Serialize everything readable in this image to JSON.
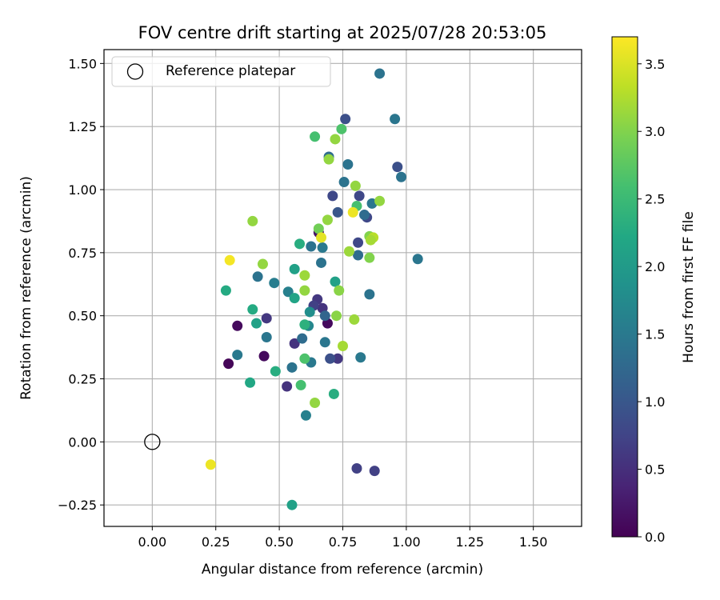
{
  "chart_data": {
    "type": "scatter",
    "title": "FOV centre drift starting at 2025/07/28 20:53:05",
    "xlabel": "Angular distance from reference (arcmin)",
    "ylabel": "Rotation from reference (arcmin)",
    "xlim": [
      -0.19,
      1.69
    ],
    "ylim": [
      -0.335,
      1.555
    ],
    "x_ticks": [
      0.0,
      0.25,
      0.5,
      0.75,
      1.0,
      1.25,
      1.5
    ],
    "x_tick_labels": [
      "0.00",
      "0.25",
      "0.50",
      "0.75",
      "1.00",
      "1.25",
      "1.50"
    ],
    "y_ticks": [
      -0.25,
      0.0,
      0.25,
      0.5,
      0.75,
      1.0,
      1.25,
      1.5
    ],
    "y_tick_labels": [
      "−0.25",
      "0.00",
      "0.25",
      "0.50",
      "0.75",
      "1.00",
      "1.25",
      "1.50"
    ],
    "grid": true,
    "legend": {
      "position": "top-left",
      "entries": [
        "Reference platepar"
      ]
    },
    "reference_point": {
      "x": 0.0,
      "y": 0.0
    },
    "colorbar": {
      "label": "Hours from first FF file",
      "colormap": "viridis",
      "range": [
        0.0,
        3.7
      ],
      "ticks": [
        0.0,
        0.5,
        1.0,
        1.5,
        2.0,
        2.5,
        3.0,
        3.5
      ],
      "tick_labels": [
        "0.0",
        "0.5",
        "1.0",
        "1.5",
        "2.0",
        "2.5",
        "3.0",
        "3.5"
      ]
    },
    "points": [
      {
        "x": 0.3,
        "y": 0.31,
        "c": 0.05
      },
      {
        "x": 0.335,
        "y": 0.46,
        "c": 0.1
      },
      {
        "x": 0.44,
        "y": 0.34,
        "c": 0.1
      },
      {
        "x": 0.69,
        "y": 0.47,
        "c": 0.1
      },
      {
        "x": 0.53,
        "y": 0.22,
        "c": 0.55
      },
      {
        "x": 0.56,
        "y": 0.39,
        "c": 0.55
      },
      {
        "x": 0.45,
        "y": 0.49,
        "c": 0.6
      },
      {
        "x": 0.65,
        "y": 0.565,
        "c": 0.6
      },
      {
        "x": 0.67,
        "y": 0.53,
        "c": 0.55
      },
      {
        "x": 0.635,
        "y": 0.54,
        "c": 0.7
      },
      {
        "x": 0.655,
        "y": 0.83,
        "c": 0.2
      },
      {
        "x": 0.73,
        "y": 0.33,
        "c": 0.6
      },
      {
        "x": 0.805,
        "y": -0.105,
        "c": 0.7
      },
      {
        "x": 0.875,
        "y": -0.115,
        "c": 0.7
      },
      {
        "x": 0.7,
        "y": 0.33,
        "c": 0.9
      },
      {
        "x": 0.71,
        "y": 0.975,
        "c": 0.8
      },
      {
        "x": 0.81,
        "y": 0.79,
        "c": 0.8
      },
      {
        "x": 0.815,
        "y": 0.975,
        "c": 0.8
      },
      {
        "x": 0.845,
        "y": 0.89,
        "c": 0.8
      },
      {
        "x": 0.76,
        "y": 1.28,
        "c": 0.9
      },
      {
        "x": 0.965,
        "y": 1.09,
        "c": 0.9
      },
      {
        "x": 0.73,
        "y": 0.91,
        "c": 1.0
      },
      {
        "x": 0.895,
        "y": 1.46,
        "c": 1.4
      },
      {
        "x": 0.955,
        "y": 1.28,
        "c": 1.45
      },
      {
        "x": 0.98,
        "y": 1.05,
        "c": 1.4
      },
      {
        "x": 0.77,
        "y": 1.1,
        "c": 1.4
      },
      {
        "x": 0.695,
        "y": 1.13,
        "c": 1.3
      },
      {
        "x": 0.755,
        "y": 1.03,
        "c": 1.4
      },
      {
        "x": 0.835,
        "y": 0.9,
        "c": 1.3
      },
      {
        "x": 0.865,
        "y": 0.945,
        "c": 1.45
      },
      {
        "x": 1.045,
        "y": 0.725,
        "c": 1.45
      },
      {
        "x": 0.81,
        "y": 0.74,
        "c": 1.3
      },
      {
        "x": 0.625,
        "y": 0.775,
        "c": 1.4
      },
      {
        "x": 0.67,
        "y": 0.77,
        "c": 1.5
      },
      {
        "x": 0.665,
        "y": 0.71,
        "c": 1.4
      },
      {
        "x": 0.415,
        "y": 0.655,
        "c": 1.4
      },
      {
        "x": 0.48,
        "y": 0.63,
        "c": 1.55
      },
      {
        "x": 0.535,
        "y": 0.595,
        "c": 1.6
      },
      {
        "x": 0.68,
        "y": 0.5,
        "c": 1.2
      },
      {
        "x": 0.45,
        "y": 0.415,
        "c": 1.45
      },
      {
        "x": 0.59,
        "y": 0.41,
        "c": 1.3
      },
      {
        "x": 0.68,
        "y": 0.395,
        "c": 1.45
      },
      {
        "x": 0.335,
        "y": 0.345,
        "c": 1.5
      },
      {
        "x": 0.625,
        "y": 0.315,
        "c": 1.5
      },
      {
        "x": 0.55,
        "y": 0.295,
        "c": 1.4
      },
      {
        "x": 0.605,
        "y": 0.105,
        "c": 1.6
      },
      {
        "x": 0.855,
        "y": 0.585,
        "c": 1.4
      },
      {
        "x": 0.82,
        "y": 0.335,
        "c": 1.5
      },
      {
        "x": 0.62,
        "y": 0.515,
        "c": 1.8
      },
      {
        "x": 0.615,
        "y": 0.46,
        "c": 1.7
      },
      {
        "x": 0.72,
        "y": 0.635,
        "c": 2.1
      },
      {
        "x": 0.56,
        "y": 0.685,
        "c": 2.1
      },
      {
        "x": 0.58,
        "y": 0.785,
        "c": 2.3
      },
      {
        "x": 0.29,
        "y": 0.6,
        "c": 2.25
      },
      {
        "x": 0.395,
        "y": 0.525,
        "c": 2.25
      },
      {
        "x": 0.41,
        "y": 0.47,
        "c": 2.1
      },
      {
        "x": 0.56,
        "y": 0.57,
        "c": 2.15
      },
      {
        "x": 0.6,
        "y": 0.465,
        "c": 2.35
      },
      {
        "x": 0.385,
        "y": 0.235,
        "c": 2.2
      },
      {
        "x": 0.485,
        "y": 0.28,
        "c": 2.3
      },
      {
        "x": 0.585,
        "y": 0.225,
        "c": 2.6
      },
      {
        "x": 0.715,
        "y": 0.19,
        "c": 2.3
      },
      {
        "x": 0.55,
        "y": -0.25,
        "c": 2.1
      },
      {
        "x": 0.64,
        "y": 1.21,
        "c": 2.6
      },
      {
        "x": 0.745,
        "y": 1.24,
        "c": 2.65
      },
      {
        "x": 0.805,
        "y": 0.935,
        "c": 2.6
      },
      {
        "x": 0.6,
        "y": 0.33,
        "c": 2.65
      },
      {
        "x": 0.72,
        "y": 1.2,
        "c": 3.1
      },
      {
        "x": 0.695,
        "y": 1.12,
        "c": 3.1
      },
      {
        "x": 0.8,
        "y": 1.015,
        "c": 3.1
      },
      {
        "x": 0.895,
        "y": 0.955,
        "c": 3.1
      },
      {
        "x": 0.69,
        "y": 0.88,
        "c": 3.1
      },
      {
        "x": 0.655,
        "y": 0.845,
        "c": 2.9
      },
      {
        "x": 0.855,
        "y": 0.815,
        "c": 3.0
      },
      {
        "x": 0.87,
        "y": 0.81,
        "c": 3.3
      },
      {
        "x": 0.86,
        "y": 0.8,
        "c": 3.2
      },
      {
        "x": 0.775,
        "y": 0.755,
        "c": 3.15
      },
      {
        "x": 0.855,
        "y": 0.73,
        "c": 3.0
      },
      {
        "x": 0.395,
        "y": 0.875,
        "c": 3.1
      },
      {
        "x": 0.435,
        "y": 0.705,
        "c": 3.1
      },
      {
        "x": 0.6,
        "y": 0.66,
        "c": 3.15
      },
      {
        "x": 0.6,
        "y": 0.6,
        "c": 3.1
      },
      {
        "x": 0.735,
        "y": 0.6,
        "c": 3.05
      },
      {
        "x": 0.725,
        "y": 0.5,
        "c": 3.05
      },
      {
        "x": 0.795,
        "y": 0.485,
        "c": 3.15
      },
      {
        "x": 0.75,
        "y": 0.38,
        "c": 3.2
      },
      {
        "x": 0.64,
        "y": 0.155,
        "c": 3.1
      },
      {
        "x": 0.79,
        "y": 0.91,
        "c": 3.6
      },
      {
        "x": 0.665,
        "y": 0.81,
        "c": 3.55
      },
      {
        "x": 0.305,
        "y": 0.72,
        "c": 3.65
      },
      {
        "x": 0.23,
        "y": -0.09,
        "c": 3.6
      }
    ]
  }
}
